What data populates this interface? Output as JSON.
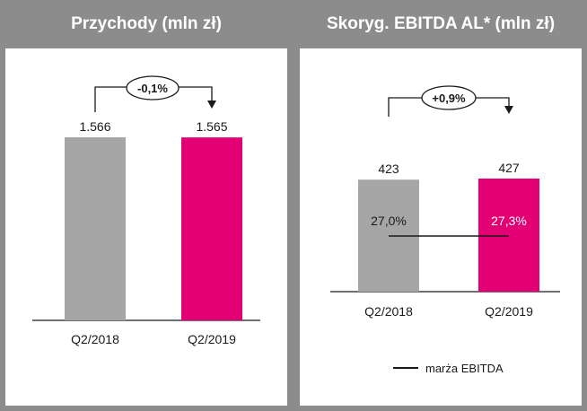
{
  "colors": {
    "gray_bar": "#a6a6a6",
    "magenta_bar": "#e20074",
    "frame": "#8c8c8c",
    "text": "#1a1a1a",
    "white": "#ffffff"
  },
  "chart_data": [
    {
      "type": "bar",
      "title": "Przychody (mln zł)",
      "categories": [
        "Q2/2018",
        "Q2/2019"
      ],
      "values": [
        1566,
        1565
      ],
      "value_labels": [
        "1.566",
        "1.565"
      ],
      "change_label": "-0,1%",
      "ylim": [
        0,
        1800
      ]
    },
    {
      "type": "bar",
      "title": "Skoryg. EBITDA AL* (mln zł)",
      "categories": [
        "Q2/2018",
        "Q2/2019"
      ],
      "values": [
        423,
        427
      ],
      "value_labels": [
        "423",
        "427"
      ],
      "change_label": "+0,9%",
      "ylim": [
        0,
        500
      ],
      "margin_series": {
        "name": "marża EBITDA",
        "values": [
          27.0,
          27.3
        ],
        "value_labels": [
          "27,0%",
          "27,3%"
        ]
      },
      "legend": "marża EBITDA"
    }
  ]
}
